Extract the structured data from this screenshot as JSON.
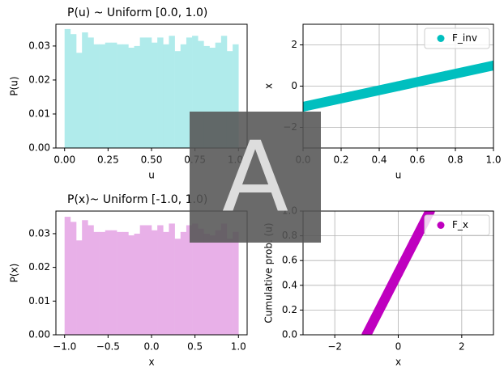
{
  "watermark": "A",
  "chart_data": [
    {
      "type": "histogram",
      "title": "P(u) ~ Uniform [0.0, 1.0)",
      "xlabel": "u",
      "ylabel": "P(u)",
      "color": "#b0ebeb",
      "bins": [
        0,
        0.0333,
        0.0667,
        0.1,
        0.1333,
        0.1667,
        0.2,
        0.2333,
        0.2667,
        0.3,
        0.3333,
        0.3667,
        0.4,
        0.4333,
        0.4667,
        0.5,
        0.5333,
        0.5667,
        0.6,
        0.6333,
        0.6667,
        0.7,
        0.7333,
        0.7667,
        0.8,
        0.8333,
        0.8667,
        0.9,
        0.9333,
        0.9667,
        1
      ],
      "values": [
        0.035,
        0.0335,
        0.028,
        0.034,
        0.0325,
        0.0305,
        0.0305,
        0.031,
        0.031,
        0.0305,
        0.0305,
        0.0295,
        0.03,
        0.0325,
        0.0325,
        0.031,
        0.0325,
        0.0305,
        0.033,
        0.0285,
        0.0305,
        0.0325,
        0.033,
        0.0315,
        0.03,
        0.0295,
        0.031,
        0.033,
        0.0285,
        0.0305
      ],
      "xlim": [
        -0.05,
        1.05
      ],
      "ylim": [
        0,
        0.0364
      ],
      "xticks": [
        {
          "value": 0,
          "label": "0.00"
        },
        {
          "value": 0.25,
          "label": "0.25"
        },
        {
          "value": 0.5,
          "label": "0.50"
        },
        {
          "value": 0.75,
          "label": "0.75"
        },
        {
          "value": 1,
          "label": "1.00"
        }
      ],
      "yticks": [
        {
          "value": 0,
          "label": "0.00"
        },
        {
          "value": 0.01,
          "label": "0.01"
        },
        {
          "value": 0.02,
          "label": "0.02"
        },
        {
          "value": 0.03,
          "label": "0.03"
        }
      ],
      "grid": false
    },
    {
      "type": "scatter",
      "xlabel": "u",
      "ylabel": "x",
      "x": [
        0,
        0.25,
        0.5,
        0.75,
        1
      ],
      "series": [
        {
          "name": "F_inv",
          "color": "#00bfbf",
          "values": [
            -1,
            -0.5,
            0,
            0.5,
            1
          ]
        }
      ],
      "xlim": [
        0,
        1
      ],
      "ylim": [
        -3,
        3
      ],
      "xticks": [
        {
          "value": 0,
          "label": "0.0"
        },
        {
          "value": 0.2,
          "label": "0.2"
        },
        {
          "value": 0.4,
          "label": "0.4"
        },
        {
          "value": 0.6,
          "label": "0.6"
        },
        {
          "value": 0.8,
          "label": "0.8"
        },
        {
          "value": 1,
          "label": "1.0"
        }
      ],
      "yticks": [
        {
          "value": -2,
          "label": "−2"
        },
        0,
        2
      ],
      "grid": true,
      "legend": "upper right"
    },
    {
      "type": "histogram",
      "title": "P(x)~ Uniform [-1.0, 1.0)",
      "xlabel": "x",
      "ylabel": "P(x)",
      "color": "#e8b0e8",
      "bins": [
        -1,
        -0.9333,
        -0.8667,
        -0.8,
        -0.7333,
        -0.6667,
        -0.6,
        -0.5333,
        -0.4667,
        -0.4,
        -0.3333,
        -0.2667,
        -0.2,
        -0.1333,
        -0.0667,
        0,
        0.0667,
        0.1333,
        0.2,
        0.2667,
        0.3333,
        0.4,
        0.4667,
        0.5333,
        0.6,
        0.6667,
        0.7333,
        0.8,
        0.8667,
        0.9333,
        1
      ],
      "values": [
        0.035,
        0.0335,
        0.028,
        0.034,
        0.0325,
        0.0305,
        0.0305,
        0.031,
        0.031,
        0.0305,
        0.0305,
        0.0295,
        0.03,
        0.0325,
        0.0325,
        0.031,
        0.0325,
        0.0305,
        0.033,
        0.0285,
        0.0305,
        0.0325,
        0.033,
        0.0315,
        0.03,
        0.0295,
        0.031,
        0.033,
        0.0285,
        0.0305
      ],
      "xlim": [
        -1.1,
        1.1
      ],
      "ylim": [
        0,
        0.0367
      ],
      "xticks": [
        {
          "value": -1,
          "label": "−1.0"
        },
        {
          "value": -0.5,
          "label": "−0.5"
        },
        {
          "value": 0,
          "label": "0.0"
        },
        {
          "value": 0.5,
          "label": "0.5"
        },
        {
          "value": 1,
          "label": "1.0"
        }
      ],
      "yticks": [
        {
          "value": 0,
          "label": "0.00"
        },
        {
          "value": 0.01,
          "label": "0.01"
        },
        {
          "value": 0.02,
          "label": "0.02"
        },
        {
          "value": 0.03,
          "label": "0.03"
        }
      ],
      "grid": false
    },
    {
      "type": "scatter",
      "xlabel": "x",
      "ylabel": "Cumulative prob. (u)",
      "x": [
        -1,
        -0.5,
        0,
        0.5,
        1
      ],
      "series": [
        {
          "name": "F_x",
          "color": "#bf00bf",
          "values": [
            0,
            0.25,
            0.5,
            0.75,
            1
          ]
        }
      ],
      "xlim": [
        -3,
        3
      ],
      "ylim": [
        0,
        1
      ],
      "xticks": [
        {
          "value": -2,
          "label": "−2"
        },
        0,
        2
      ],
      "yticks": [
        {
          "value": 0,
          "label": "0.0"
        },
        {
          "value": 0.2,
          "label": "0.2"
        },
        {
          "value": 0.4,
          "label": "0.4"
        },
        {
          "value": 0.6,
          "label": "0.6"
        },
        {
          "value": 0.8,
          "label": "0.8"
        },
        {
          "value": 1,
          "label": "1.0"
        }
      ],
      "grid": true,
      "legend": "upper right"
    }
  ]
}
